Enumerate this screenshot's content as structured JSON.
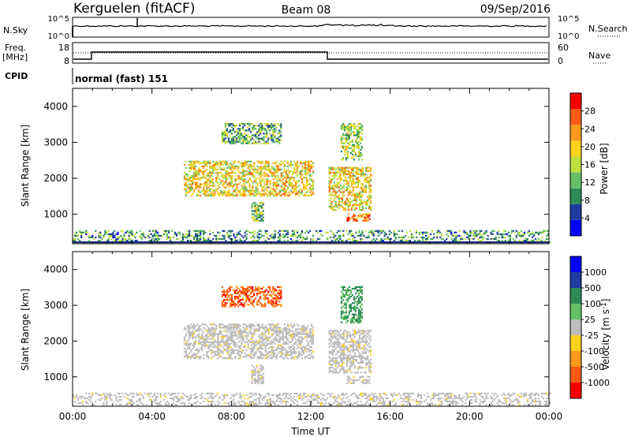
{
  "header": {
    "station": "Kerguelen (fitACF)",
    "beam": "Beam 08",
    "date": "09/Sep/2016"
  },
  "noise_panel": {
    "left_label": "N.Sky",
    "left_ticks": [
      "10^5",
      "10^0"
    ],
    "right_label": "N.Search",
    "right_ticks": [
      "10^5",
      "10^0"
    ]
  },
  "freq_panel": {
    "left_label_1": "Freq.",
    "left_label_2": "[MHz]",
    "left_ticks": [
      "18",
      "8"
    ],
    "right_label": "Nave",
    "right_ticks": [
      "60",
      "0"
    ],
    "cpid_label": "CPID",
    "cpid_text": "normal (fast) 151"
  },
  "colors": {
    "power_scale": [
      "#0000ff",
      "#1e3ca0",
      "#2e8b57",
      "#66c066",
      "#bfe040",
      "#ffd21e",
      "#ff9a1e",
      "#ff5a14",
      "#ff0000"
    ],
    "velocity_scale": [
      "#ff0000",
      "#ff5a14",
      "#ff9a1e",
      "#ffd21e",
      "#bebebe",
      "#66c066",
      "#2e8b57",
      "#1e3ca0",
      "#0000ff"
    ],
    "ground_line": "#0a1a6e"
  },
  "chart_data": [
    {
      "type": "heatmap",
      "panel": "power",
      "ylabel": "Slant Range [km]",
      "yticks": [
        "4000",
        "3000",
        "2000",
        "1000"
      ],
      "ylim": [
        180,
        4500
      ],
      "xlim": [
        0,
        24
      ],
      "colorbar_label": "Power [dB]",
      "colorbar_ticks": [
        "28",
        "24",
        "20",
        "16",
        "12",
        "8",
        "4"
      ],
      "regions": [
        {
          "t0": 5.6,
          "t1": 12.1,
          "r0": 1500,
          "r1": 2450,
          "intensity": 0.6
        },
        {
          "t0": 12.9,
          "t1": 15.0,
          "r0": 1100,
          "r1": 2300,
          "intensity": 0.6
        },
        {
          "t0": 7.5,
          "t1": 10.5,
          "r0": 2950,
          "r1": 3500,
          "intensity": 0.35
        },
        {
          "t0": 13.5,
          "t1": 14.6,
          "r0": 2500,
          "r1": 3500,
          "intensity": 0.45
        },
        {
          "t0": 9.0,
          "t1": 9.6,
          "r0": 800,
          "r1": 1300,
          "intensity": 0.4
        },
        {
          "t0": 13.8,
          "t1": 15.0,
          "r0": 800,
          "r1": 1000,
          "intensity": 0.8
        },
        {
          "t0": 0.0,
          "t1": 24.0,
          "r0": 200,
          "r1": 550,
          "intensity": 0.3
        }
      ]
    },
    {
      "type": "heatmap",
      "panel": "velocity",
      "ylabel": "Slant Range [km]",
      "yticks": [
        "4000",
        "3000",
        "2000",
        "1000"
      ],
      "ylim": [
        180,
        4500
      ],
      "xlim": [
        0,
        24
      ],
      "xticks": [
        "00:00",
        "04:00",
        "08:00",
        "12:00",
        "16:00",
        "20:00",
        "00:00"
      ],
      "xlabel": "Time UT",
      "colorbar_label": "Velocity [m s^-1]",
      "colorbar_ticks": [
        "1000",
        "500",
        "100",
        "25",
        "-25",
        "-100",
        "-500",
        "-1000"
      ],
      "regions": [
        {
          "t0": 5.6,
          "t1": 12.1,
          "r0": 1500,
          "r1": 2450,
          "velocity": 0
        },
        {
          "t0": 12.9,
          "t1": 15.0,
          "r0": 1100,
          "r1": 2300,
          "velocity": 0
        },
        {
          "t0": 7.5,
          "t1": 10.5,
          "r0": 2950,
          "r1": 3500,
          "velocity": -300
        },
        {
          "t0": 13.5,
          "t1": 14.6,
          "r0": 2500,
          "r1": 3500,
          "velocity": 150
        },
        {
          "t0": 9.0,
          "t1": 9.6,
          "r0": 800,
          "r1": 1300,
          "velocity": 0
        },
        {
          "t0": 13.8,
          "t1": 15.0,
          "r0": 800,
          "r1": 1000,
          "velocity": 0
        },
        {
          "t0": 0.0,
          "t1": 24.0,
          "r0": 200,
          "r1": 550,
          "velocity": 0
        }
      ]
    }
  ]
}
